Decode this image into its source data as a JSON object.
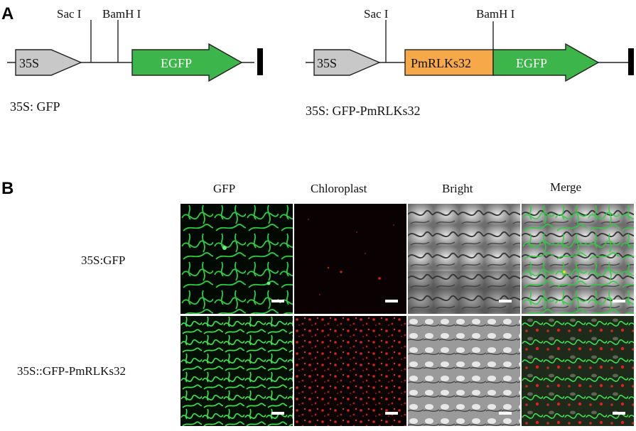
{
  "panels": {
    "a": "A",
    "b": "B"
  },
  "constructs": [
    {
      "caption": "35S: GFP",
      "promoter": "35S",
      "site1": "Sac I",
      "site2": "BamH I",
      "reporter": "EGFP"
    },
    {
      "caption": "35S: GFP-PmRLKs32",
      "promoter": "35S",
      "site1": "Sac I",
      "site2": "BamH I",
      "gene": "PmRLKs32",
      "reporter": "EGFP"
    }
  ],
  "grid": {
    "columns": [
      "GFP",
      "Chloroplast",
      "Bright",
      "Merge"
    ],
    "rows": [
      "35S:GFP",
      "35S::GFP-PmRLKs32"
    ]
  },
  "colors": {
    "promoter": "#c8c8c8",
    "egfp": "#3cb54a",
    "gene": "#f7a949",
    "gfp_signal": "#2ecc40",
    "chloroplast_signal": "#e0201c"
  }
}
